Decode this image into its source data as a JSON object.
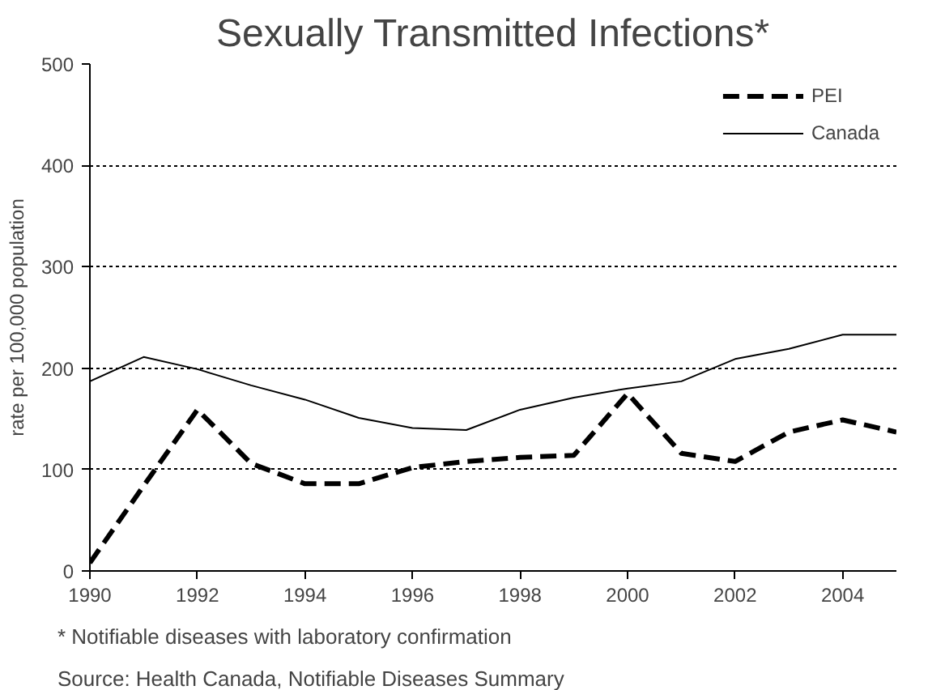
{
  "chart_data": {
    "type": "line",
    "title": "Sexually Transmitted Infections*",
    "ylabel": "rate per 100,000 population",
    "x": [
      1990,
      1991,
      1992,
      1993,
      1994,
      1995,
      1996,
      1997,
      1998,
      1999,
      2000,
      2001,
      2002,
      2003,
      2004,
      2005
    ],
    "series": [
      {
        "name": "PEI",
        "color": "#000000",
        "line_style": "dashed",
        "values": [
          8,
          84,
          159,
          106,
          86,
          86,
          102,
          108,
          112,
          114,
          175,
          116,
          108,
          137,
          149,
          137
        ]
      },
      {
        "name": "Canada",
        "color": "#000000",
        "line_style": "solid",
        "values": [
          187,
          211,
          199,
          183,
          169,
          151,
          141,
          139,
          159,
          171,
          180,
          187,
          209,
          219,
          233,
          233
        ]
      }
    ],
    "xlim": [
      1990,
      2005
    ],
    "xticks": [
      1990,
      1992,
      1994,
      1996,
      1998,
      2000,
      2002,
      2004
    ],
    "ylim": [
      0,
      500
    ],
    "yticks": [
      0,
      100,
      200,
      300,
      400,
      500
    ],
    "grid": "y",
    "legend": "top right",
    "annotations": [
      "* Notifiable diseases with laboratory confirmation",
      "Source: Health Canada, Notifiable Diseases Summary"
    ]
  }
}
